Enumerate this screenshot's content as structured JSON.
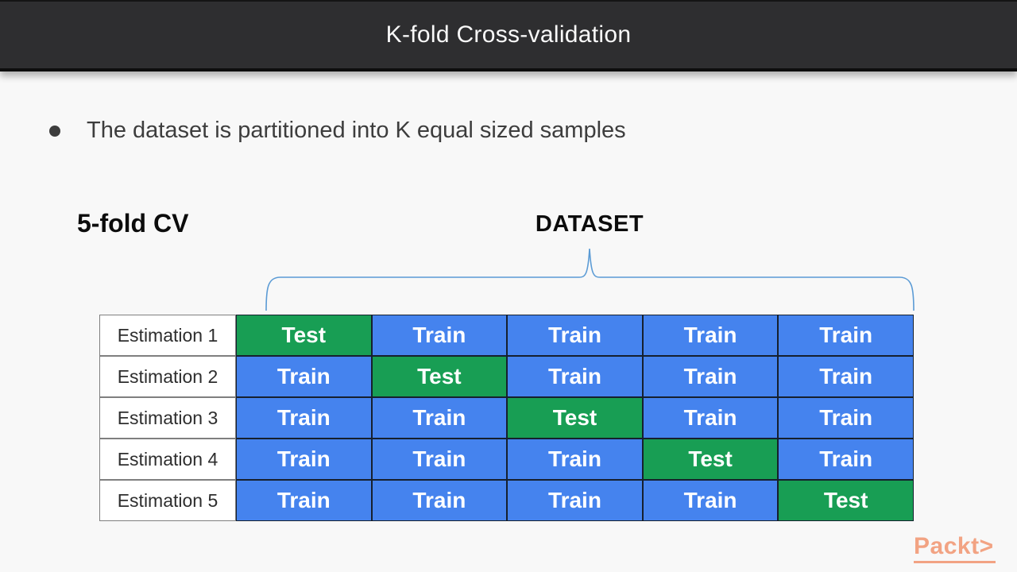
{
  "header": {
    "title": "K-fold Cross-validation"
  },
  "slide": {
    "bullet_text": "The dataset is partitioned into K equal sized samples"
  },
  "diagram": {
    "fold_label": "5-fold CV",
    "dataset_label": "DATASET",
    "test_word": "Test",
    "train_word": "Train",
    "rows": [
      {
        "label": "Estimation 1",
        "cells": [
          "Test",
          "Train",
          "Train",
          "Train",
          "Train"
        ]
      },
      {
        "label": "Estimation 2",
        "cells": [
          "Train",
          "Test",
          "Train",
          "Train",
          "Train"
        ]
      },
      {
        "label": "Estimation 3",
        "cells": [
          "Train",
          "Train",
          "Test",
          "Train",
          "Train"
        ]
      },
      {
        "label": "Estimation 4",
        "cells": [
          "Train",
          "Train",
          "Train",
          "Test",
          "Train"
        ]
      },
      {
        "label": "Estimation 5",
        "cells": [
          "Train",
          "Train",
          "Train",
          "Train",
          "Test"
        ]
      }
    ]
  },
  "logo": {
    "text": "Packt",
    "chevron": ">"
  },
  "colors": {
    "header_bg": "#2e2e30",
    "body_bg": "#f8f8f8",
    "test_green": "#189e54",
    "train_blue": "#4583ee",
    "cell_border": "#16202e",
    "label_border": "#7f7f7f",
    "text_dark": "#3d3d3d",
    "brace_blue": "#5b9bd5",
    "logo_orange": "#f2a383"
  }
}
